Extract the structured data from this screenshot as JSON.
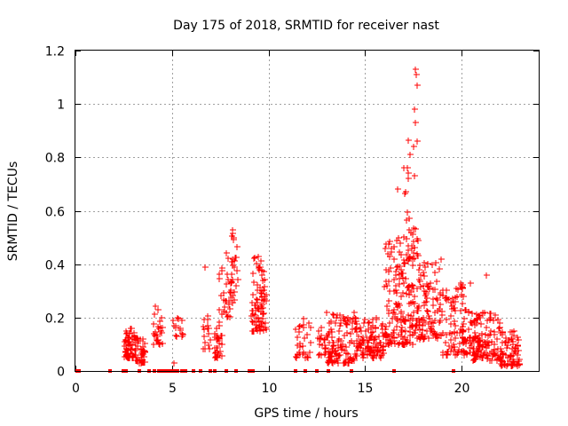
{
  "chart_data": {
    "type": "scatter",
    "title": "Day 175 of 2018, SRMTID for receiver nast",
    "xlabel": "GPS time / hours",
    "ylabel": "SRMTID / TECUs",
    "xlim": [
      0,
      24
    ],
    "ylim": [
      0,
      1.2
    ],
    "xticks": [
      0,
      5,
      10,
      15,
      20
    ],
    "yticks": [
      0,
      0.2,
      0.4,
      0.6,
      0.8,
      1,
      1.2
    ],
    "ytick_labels": [
      "0",
      "0.2",
      "0.4",
      "0.6",
      "0.8",
      "1",
      "1.2"
    ],
    "grid": true,
    "marker": "+",
    "color": "#ff0000",
    "clusters": [
      {
        "x": [
          2.5,
          3.1
        ],
        "y": [
          0.05,
          0.16
        ],
        "n": 60
      },
      {
        "x": [
          3.1,
          3.6
        ],
        "y": [
          0.03,
          0.13
        ],
        "n": 40
      },
      {
        "x": [
          4.0,
          4.5
        ],
        "y": [
          0.1,
          0.25
        ],
        "n": 25
      },
      {
        "x": [
          5.0,
          5.6
        ],
        "y": [
          0.13,
          0.2
        ],
        "n": 14
      },
      {
        "x": [
          6.6,
          7.0
        ],
        "y": [
          0.08,
          0.22
        ],
        "n": 16
      },
      {
        "x": [
          7.2,
          7.6
        ],
        "y": [
          0.05,
          0.2
        ],
        "n": 30
      },
      {
        "x": [
          7.4,
          8.0
        ],
        "y": [
          0.2,
          0.45
        ],
        "n": 28
      },
      {
        "x": [
          8.0,
          8.4
        ],
        "y": [
          0.25,
          0.53
        ],
        "n": 26
      },
      {
        "x": [
          9.1,
          9.9
        ],
        "y": [
          0.15,
          0.43
        ],
        "n": 85
      },
      {
        "x": [
          11.4,
          12.2
        ],
        "y": [
          0.05,
          0.2
        ],
        "n": 30
      },
      {
        "x": [
          12.5,
          13.0
        ],
        "y": [
          0.06,
          0.17
        ],
        "n": 20
      },
      {
        "x": [
          13.0,
          14.5
        ],
        "y": [
          0.03,
          0.22
        ],
        "n": 110
      },
      {
        "x": [
          14.5,
          16.0
        ],
        "y": [
          0.05,
          0.2
        ],
        "n": 110
      },
      {
        "x": [
          16.0,
          17.5
        ],
        "y": [
          0.1,
          0.5
        ],
        "n": 150
      },
      {
        "x": [
          17.0,
          17.8
        ],
        "y": [
          0.4,
          0.88
        ],
        "n": 35
      },
      {
        "x": [
          17.5,
          19.0
        ],
        "y": [
          0.12,
          0.42
        ],
        "n": 110
      },
      {
        "x": [
          19.0,
          20.5
        ],
        "y": [
          0.06,
          0.33
        ],
        "n": 100
      },
      {
        "x": [
          20.5,
          22.0
        ],
        "y": [
          0.04,
          0.22
        ],
        "n": 120
      },
      {
        "x": [
          22.0,
          23.0
        ],
        "y": [
          0.02,
          0.15
        ],
        "n": 80
      }
    ],
    "notable_points": [
      {
        "x": 17.6,
        "y": 1.13
      },
      {
        "x": 17.65,
        "y": 1.11
      },
      {
        "x": 17.7,
        "y": 1.07
      },
      {
        "x": 17.55,
        "y": 0.98
      },
      {
        "x": 17.6,
        "y": 0.93
      },
      {
        "x": 17.7,
        "y": 0.86
      },
      {
        "x": 17.2,
        "y": 0.76
      },
      {
        "x": 16.7,
        "y": 0.68
      },
      {
        "x": 21.3,
        "y": 0.36
      },
      {
        "x": 5.1,
        "y": 0.03
      },
      {
        "x": 6.7,
        "y": 0.39
      },
      {
        "x": 8.2,
        "y": 0.5
      },
      {
        "x": 8.15,
        "y": 0.53
      }
    ],
    "zero_values_x": [
      0.1,
      0.2,
      1.8,
      2.5,
      2.6,
      3.3,
      3.8,
      4.1,
      4.3,
      4.4,
      4.5,
      4.6,
      4.7,
      4.8,
      4.9,
      5.0,
      5.1,
      5.3,
      5.5,
      5.7,
      6.1,
      6.5,
      7.0,
      7.2,
      7.8,
      8.3,
      9.0,
      9.1,
      9.2,
      11.4,
      11.9,
      12.5,
      13.1,
      14.3,
      16.5,
      19.6
    ]
  }
}
